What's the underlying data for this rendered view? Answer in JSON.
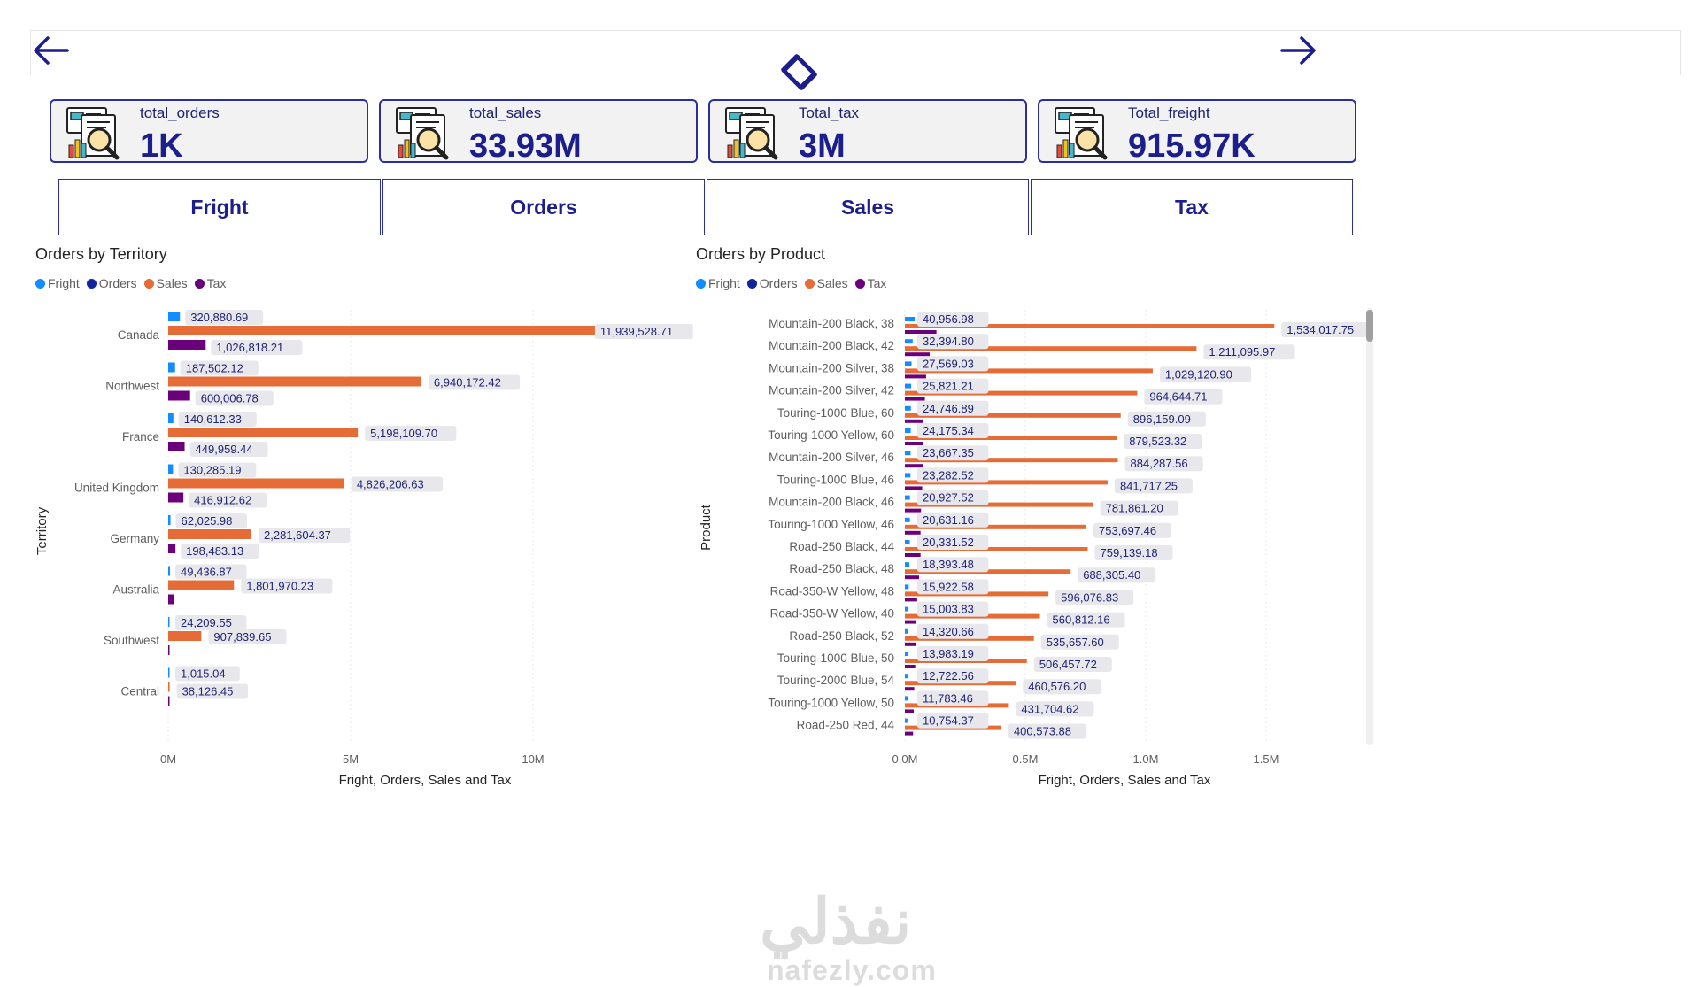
{
  "kpis": [
    {
      "label": "total_orders",
      "value": "1K"
    },
    {
      "label": "total_sales",
      "value": "33.93M"
    },
    {
      "label": "Total_tax",
      "value": "3M"
    },
    {
      "label": "Total_freight",
      "value": "915.97K"
    }
  ],
  "tabs": [
    "Fright",
    "Orders",
    "Sales",
    "Tax"
  ],
  "charts": {
    "territory": {
      "title": "Orders by Territory",
      "legend": [
        "Fright",
        "Orders",
        "Sales",
        "Tax"
      ],
      "ylabel": "Territory",
      "xlabel": "Fright, Orders, Sales and Tax",
      "ticks": [
        "0M",
        "5M",
        "10M"
      ]
    },
    "product": {
      "title": "Orders by Product",
      "legend": [
        "Fright",
        "Orders",
        "Sales",
        "Tax"
      ],
      "ylabel": "Product",
      "xlabel": "Fright, Orders, Sales and Tax",
      "ticks": [
        "0.0M",
        "0.5M",
        "1.0M",
        "1.5M"
      ]
    }
  },
  "colors": {
    "fright": "#118DFF",
    "orders": "#12239E",
    "sales": "#E66C37",
    "tax": "#6B007B",
    "accent": "#1c1e8c"
  },
  "icons": {
    "back": "arrow-left-icon",
    "forward": "arrow-right-icon",
    "center": "diamond-icon",
    "kpi": "report-magnifier-icon"
  },
  "watermark": {
    "arabic": "نفذلي",
    "latin": "nafezly.com"
  },
  "chart_data": [
    {
      "type": "bar",
      "orientation": "horizontal",
      "title": "Orders by Territory",
      "xlabel": "Fright, Orders, Sales and Tax",
      "ylabel": "Territory",
      "xlim": [
        0,
        14000000
      ],
      "categories": [
        "Canada",
        "Northwest",
        "France",
        "United Kingdom",
        "Germany",
        "Australia",
        "Southwest",
        "Central"
      ],
      "series": [
        {
          "name": "Fright",
          "values": [
            320880.69,
            187502.12,
            140612.33,
            130285.19,
            62025.98,
            49436.87,
            24209.55,
            1015.04
          ],
          "labels": [
            "320,880.69",
            "187,502.12",
            "140,612.33",
            "130,285.19",
            "62,025.98",
            "49,436.87",
            "24,209.55",
            "1,015.04"
          ]
        },
        {
          "name": "Orders",
          "values": [
            0,
            0,
            0,
            0,
            0,
            0,
            0,
            0
          ],
          "labels": [
            "",
            "",
            "",
            "",
            "",
            "",
            "",
            ""
          ]
        },
        {
          "name": "Sales",
          "values": [
            11939528.71,
            6940172.42,
            5198109.7,
            4826206.63,
            2281604.37,
            1801970.23,
            907839.65,
            38126.45
          ],
          "labels": [
            "11,939,528.71",
            "6,940,172.42",
            "5,198,109.70",
            "4,826,206.63",
            "2,281,604.37",
            "1,801,970.23",
            "907,839.65",
            "38,126.45"
          ]
        },
        {
          "name": "Tax",
          "values": [
            1026818.21,
            600006.78,
            449959.44,
            416912.62,
            198483.13,
            150000,
            20000,
            3000
          ],
          "labels": [
            "1,026,818.21",
            "600,006.78",
            "449,959.44",
            "416,912.62",
            "198,483.13",
            "",
            "",
            ""
          ]
        }
      ],
      "tick_labels": [
        "0M",
        "5M",
        "10M"
      ]
    },
    {
      "type": "bar",
      "orientation": "horizontal",
      "title": "Orders by Product",
      "xlabel": "Fright, Orders, Sales and Tax",
      "ylabel": "Product",
      "xlim": [
        0,
        1950000
      ],
      "categories": [
        "Mountain-200 Black, 38",
        "Mountain-200 Black, 42",
        "Mountain-200 Silver, 38",
        "Mountain-200 Silver, 42",
        "Touring-1000 Blue, 60",
        "Touring-1000 Yellow, 60",
        "Mountain-200 Silver, 46",
        "Touring-1000 Blue, 46",
        "Mountain-200 Black, 46",
        "Touring-1000 Yellow, 46",
        "Road-250 Black, 44",
        "Road-250 Black, 48",
        "Road-350-W Yellow, 48",
        "Road-350-W Yellow, 40",
        "Road-250 Black, 52",
        "Touring-1000 Blue, 50",
        "Touring-2000 Blue, 54",
        "Touring-1000 Yellow, 50",
        "Road-250 Red, 44"
      ],
      "series": [
        {
          "name": "Fright",
          "values": [
            40956.98,
            32394.8,
            27569.03,
            25821.21,
            24746.89,
            24175.34,
            23667.35,
            23282.52,
            20927.52,
            20631.16,
            20331.52,
            18393.48,
            15922.58,
            15003.83,
            14320.66,
            13983.19,
            12722.56,
            11783.46,
            10754.37
          ],
          "labels": [
            "40,956.98",
            "32,394.80",
            "27,569.03",
            "25,821.21",
            "24,746.89",
            "24,175.34",
            "23,667.35",
            "23,282.52",
            "20,927.52",
            "20,631.16",
            "20,331.52",
            "18,393.48",
            "15,922.58",
            "15,003.83",
            "14,320.66",
            "13,983.19",
            "12,722.56",
            "11,783.46",
            "10,754.37"
          ]
        },
        {
          "name": "Sales",
          "values": [
            1534017.75,
            1211095.97,
            1029120.9,
            964644.71,
            896159.09,
            879523.32,
            884287.56,
            841717.25,
            781861.2,
            753697.46,
            759139.18,
            688305.4,
            596076.83,
            560812.16,
            535657.6,
            506457.72,
            460576.2,
            431704.62,
            400573.88
          ],
          "labels": [
            "1,534,017.75",
            "1,211,095.97",
            "1,029,120.90",
            "964,644.71",
            "896,159.09",
            "879,523.32",
            "884,287.56",
            "841,717.25",
            "781,861.20",
            "753,697.46",
            "759,139.18",
            "688,305.40",
            "596,076.83",
            "560,812.16",
            "535,657.60",
            "506,457.72",
            "460,576.20",
            "431,704.62",
            "400,573.88"
          ]
        },
        {
          "name": "Tax",
          "values": [
            131000,
            103000,
            88000,
            83000,
            77000,
            75000,
            76000,
            72000,
            67000,
            65000,
            65000,
            59000,
            51000,
            48000,
            46000,
            43000,
            39000,
            37000,
            34000
          ],
          "labels": []
        }
      ],
      "tick_labels": [
        "0.0M",
        "0.5M",
        "1.0M",
        "1.5M"
      ]
    }
  ]
}
